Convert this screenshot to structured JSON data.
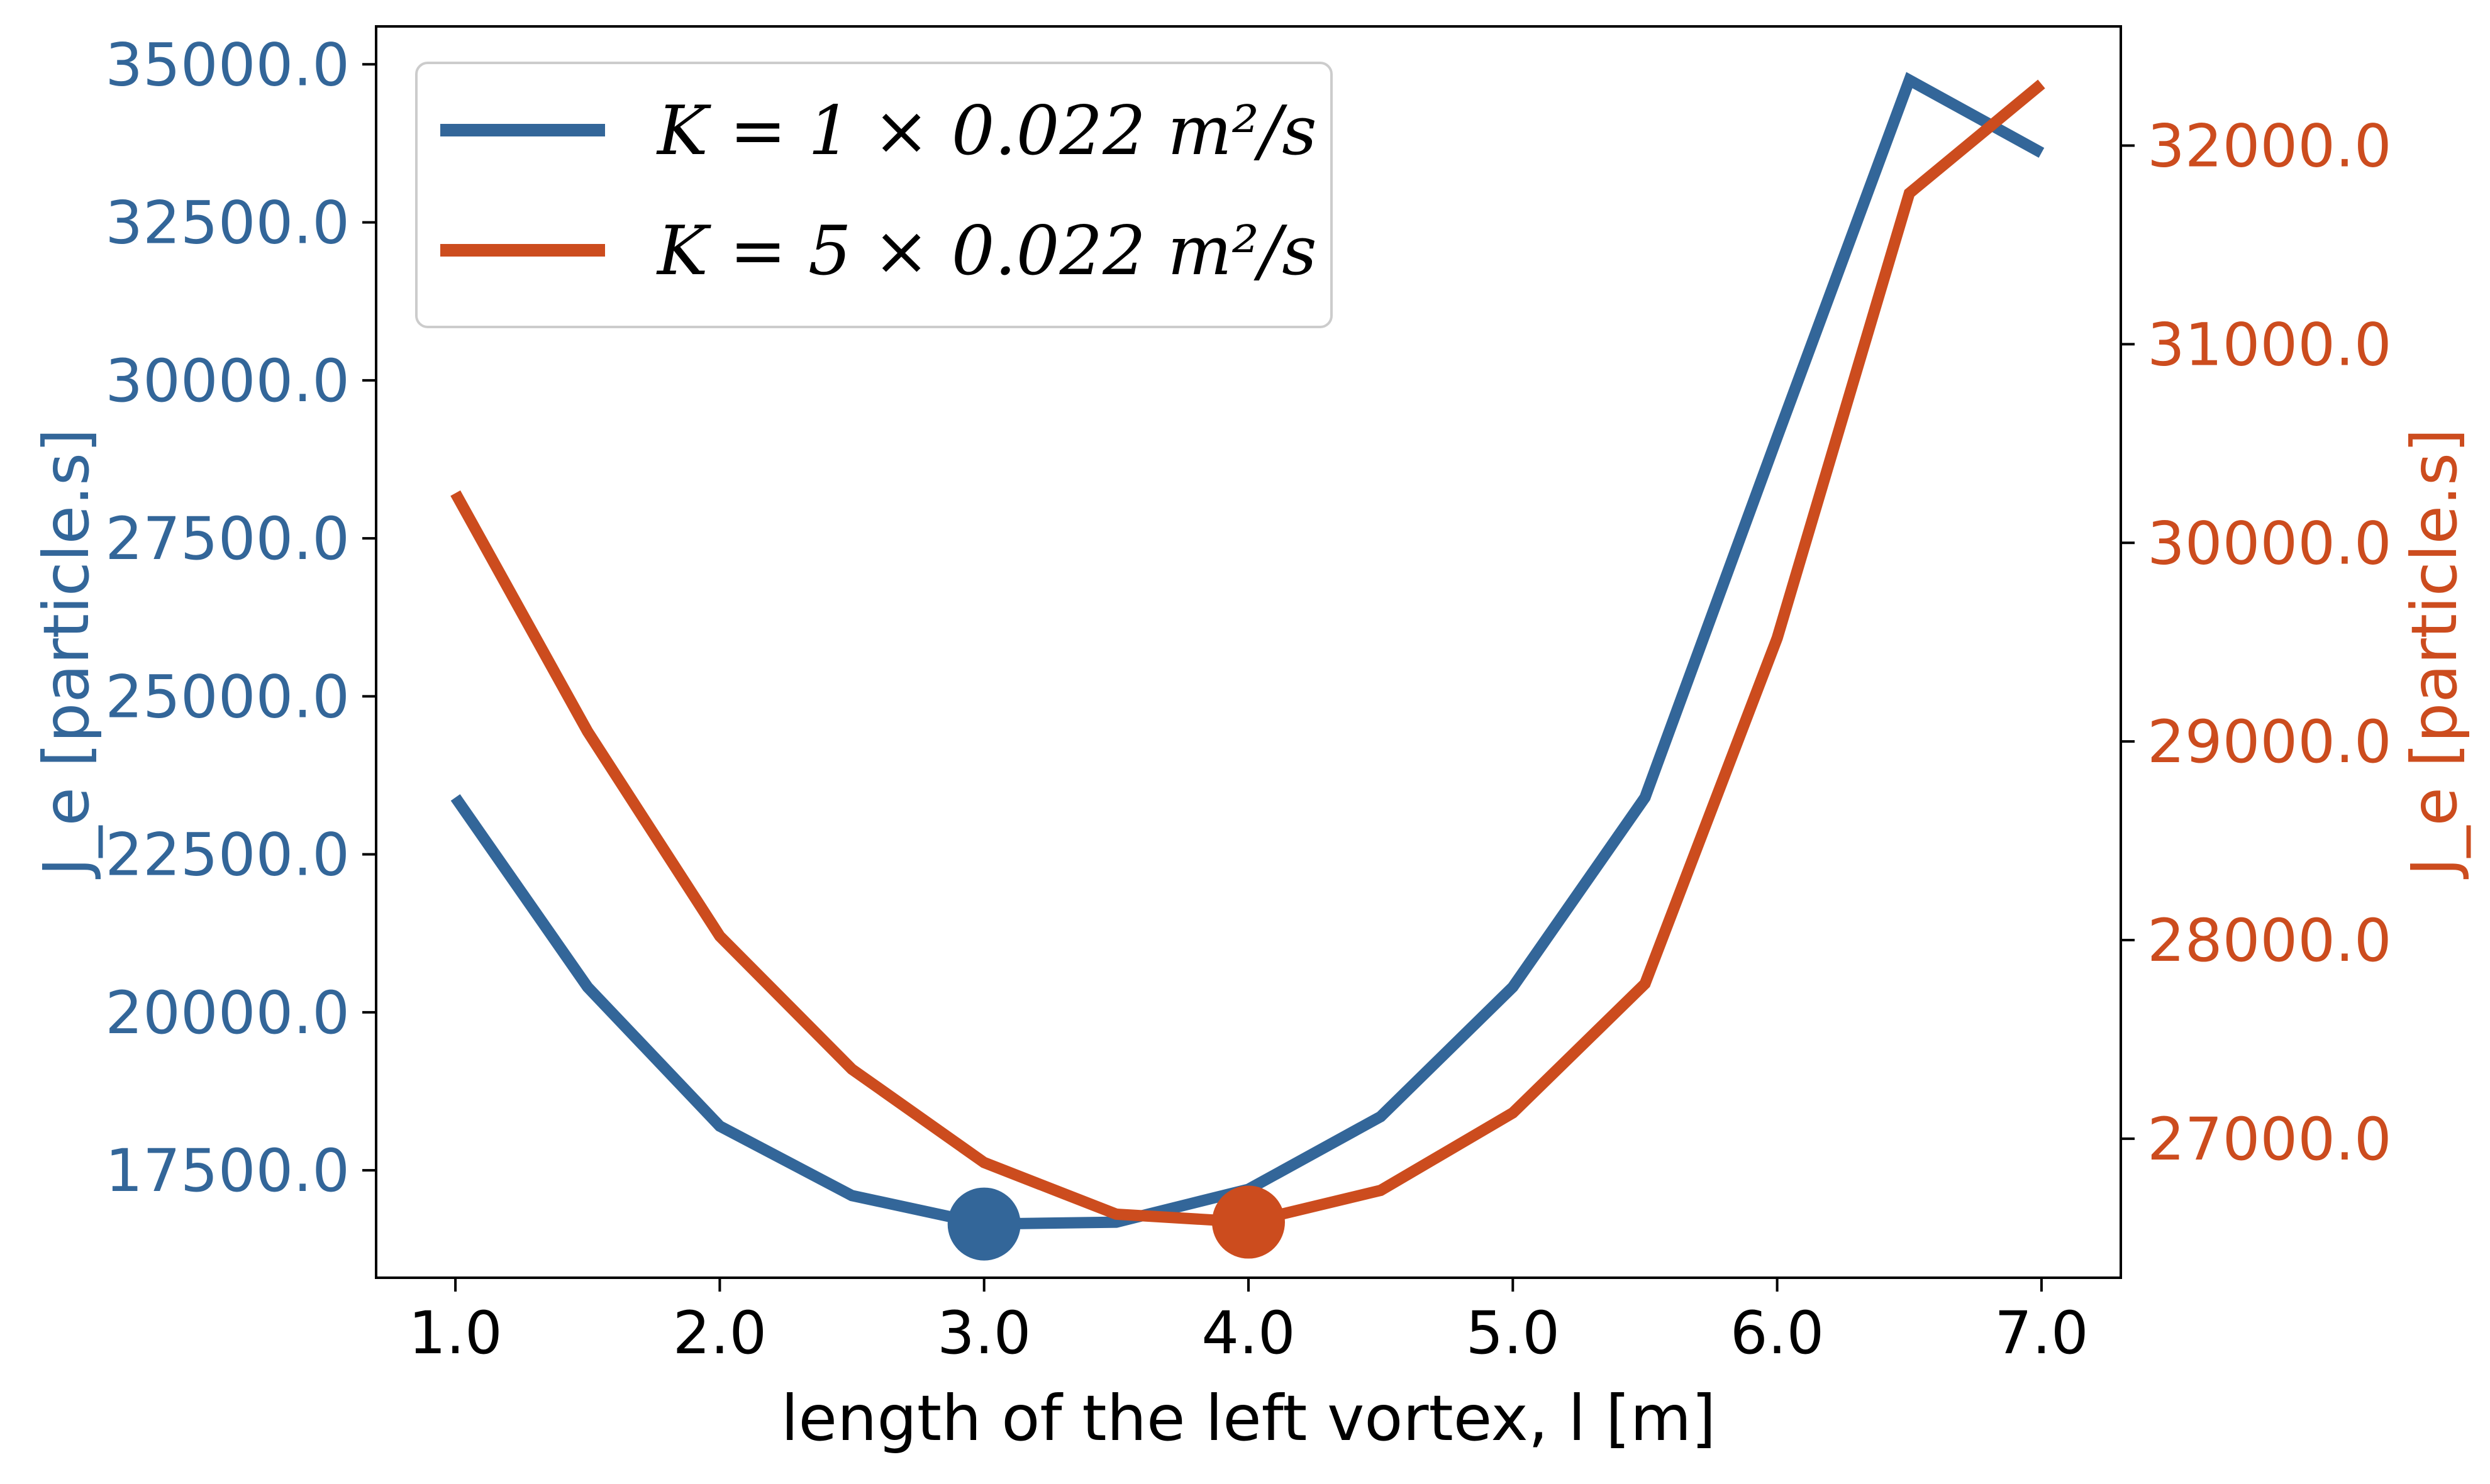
{
  "chart_data": {
    "type": "line",
    "xlabel": "length of the left vortex, l [m]",
    "ylabel_left": "J_e [particle.s]",
    "ylabel_right": "J_e [particle.s]",
    "xlim": [
      0.7,
      7.3
    ],
    "ylim_left": [
      15800,
      35600
    ],
    "ylim_right": [
      26300,
      32600
    ],
    "x_ticks": [
      1.0,
      2.0,
      3.0,
      4.0,
      5.0,
      6.0,
      7.0
    ],
    "x_tick_labels": [
      "1.0",
      "2.0",
      "3.0",
      "4.0",
      "5.0",
      "6.0",
      "7.0"
    ],
    "y_left_ticks": [
      17500,
      20000,
      22500,
      25000,
      27500,
      30000,
      32500,
      35000
    ],
    "y_left_tick_labels": [
      "17500.0",
      "20000.0",
      "22500.0",
      "25000.0",
      "27500.0",
      "30000.0",
      "32500.0",
      "35000.0"
    ],
    "y_right_ticks": [
      27000,
      28000,
      29000,
      30000,
      31000,
      32000
    ],
    "y_right_tick_labels": [
      "27000.0",
      "28000.0",
      "29000.0",
      "30000.0",
      "31000.0",
      "32000.0"
    ],
    "grid": false,
    "legend_position": "top-left",
    "x": [
      1.0,
      1.5,
      2.0,
      2.5,
      3.0,
      3.5,
      4.0,
      4.5,
      5.0,
      5.5,
      6.0,
      6.5,
      7.0
    ],
    "series": [
      {
        "name": "K = 1 × 0.022 m²/s",
        "axis": "left",
        "color": "#336699",
        "values": [
          23400,
          20400,
          18200,
          17100,
          16650,
          16680,
          17200,
          18350,
          20400,
          23400,
          29100,
          34750,
          33600
        ],
        "minimum": {
          "x": 3.0,
          "y": 16650
        }
      },
      {
        "name": "K = 5 × 0.022 m²/s",
        "axis": "right",
        "color": "#CC4C1E",
        "values": [
          30250,
          29050,
          28020,
          27350,
          26880,
          26620,
          26580,
          26740,
          27130,
          27780,
          29520,
          31760,
          32310
        ],
        "minimum": {
          "x": 4.0,
          "y": 26580
        }
      }
    ]
  }
}
